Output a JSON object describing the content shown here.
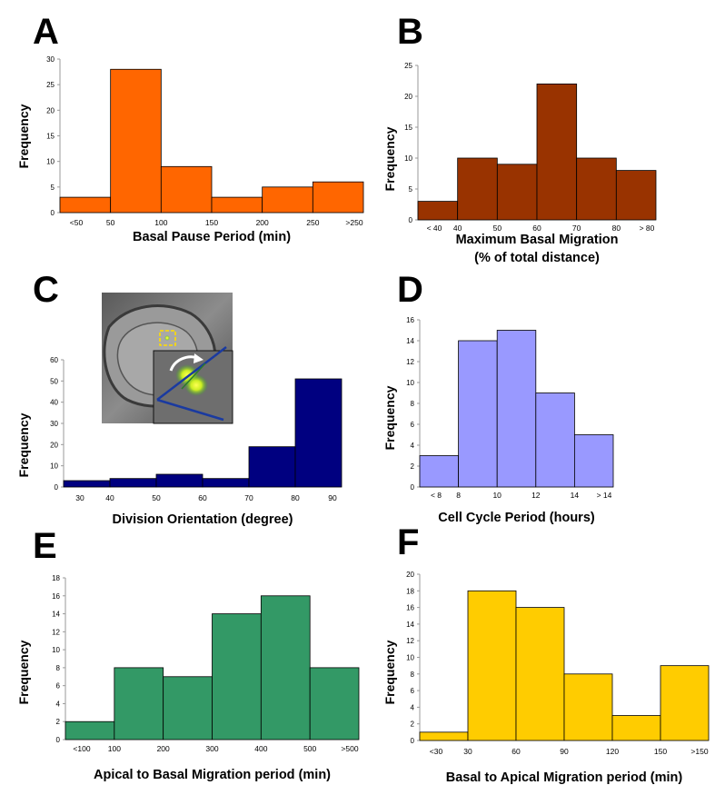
{
  "chart_data": [
    {
      "id": "A",
      "type": "bar",
      "letter": "A",
      "color": "#FF6600",
      "ylabel": "Frequency",
      "xlabel_lines": [
        "Basal Pause Period (min)"
      ],
      "ylim": [
        0,
        30
      ],
      "yticks": [
        0,
        5,
        10,
        15,
        20,
        25,
        30
      ],
      "categories": [
        "<50",
        "50-100",
        "100-150",
        "150-200",
        "200-250",
        ">250"
      ],
      "values": [
        3,
        28,
        9,
        3,
        5,
        6
      ],
      "tick_labels": [
        "<50",
        "50",
        "100",
        "150",
        "200",
        "250",
        ">250"
      ]
    },
    {
      "id": "B",
      "type": "bar",
      "letter": "B",
      "color": "#993300",
      "ylabel": "Frequency",
      "xlabel_lines": [
        "Maximum Basal Migration",
        "(% of total distance)"
      ],
      "ylim": [
        0,
        25
      ],
      "yticks": [
        0,
        5,
        10,
        15,
        20,
        25
      ],
      "categories": [
        "<40",
        "40-50",
        "50-60",
        "60-70",
        "70-80",
        ">80"
      ],
      "values": [
        3,
        10,
        9,
        22,
        10,
        8
      ],
      "tick_labels": [
        "< 40",
        "40",
        "50",
        "60",
        "70",
        "80",
        "> 80"
      ]
    },
    {
      "id": "C",
      "type": "bar",
      "letter": "C",
      "color": "#000080",
      "ylabel": "Frequency",
      "xlabel_lines": [
        "Division Orientation (degree)"
      ],
      "ylim": [
        0,
        60
      ],
      "yticks": [
        0,
        10,
        20,
        30,
        40,
        50,
        60
      ],
      "categories": [
        "30-40",
        "40-50",
        "50-60",
        "60-70",
        "70-80",
        "80-90"
      ],
      "values": [
        3,
        4,
        6,
        4,
        19,
        51
      ],
      "tick_labels": [
        "30",
        "40",
        "50",
        "60",
        "70",
        "80",
        "90"
      ]
    },
    {
      "id": "D",
      "type": "bar",
      "letter": "D",
      "color": "#9999FF",
      "ylabel": "Frequency",
      "xlabel_lines": [
        "Cell Cycle Period (hours)"
      ],
      "ylim": [
        0,
        16
      ],
      "yticks": [
        0,
        2,
        4,
        6,
        8,
        10,
        12,
        14,
        16
      ],
      "categories": [
        "<8",
        "8-10",
        "10-12",
        "12-14",
        ">14"
      ],
      "values": [
        3,
        14,
        15,
        9,
        5
      ],
      "tick_labels": [
        "< 8",
        "8",
        "10",
        "12",
        "14",
        "> 14"
      ]
    },
    {
      "id": "E",
      "type": "bar",
      "letter": "E",
      "color": "#339966",
      "ylabel": "Frequency",
      "xlabel_lines": [
        "Apical to Basal Migration period (min)"
      ],
      "ylim": [
        0,
        18
      ],
      "yticks": [
        0,
        2,
        4,
        6,
        8,
        10,
        12,
        14,
        16,
        18
      ],
      "categories": [
        "<100",
        "100-200",
        "200-300",
        "300-400",
        "400-500",
        ">500"
      ],
      "values": [
        2,
        8,
        7,
        14,
        16,
        8
      ],
      "tick_labels": [
        "<100",
        "100",
        "200",
        "300",
        "400",
        "500",
        ">500"
      ]
    },
    {
      "id": "F",
      "type": "bar",
      "letter": "F",
      "color": "#FFCC00",
      "ylabel": "Frequency",
      "xlabel_lines": [
        "Basal to Apical Migration period (min)"
      ],
      "ylim": [
        0,
        20
      ],
      "yticks": [
        0,
        2,
        4,
        6,
        8,
        10,
        12,
        14,
        16,
        18,
        20
      ],
      "categories": [
        "<30",
        "30-60",
        "60-90",
        "90-120",
        "120-150",
        ">150"
      ],
      "values": [
        1,
        18,
        16,
        8,
        3,
        9
      ],
      "tick_labels": [
        "<30",
        "30",
        "60",
        "90",
        "120",
        "150",
        ">150"
      ]
    }
  ]
}
